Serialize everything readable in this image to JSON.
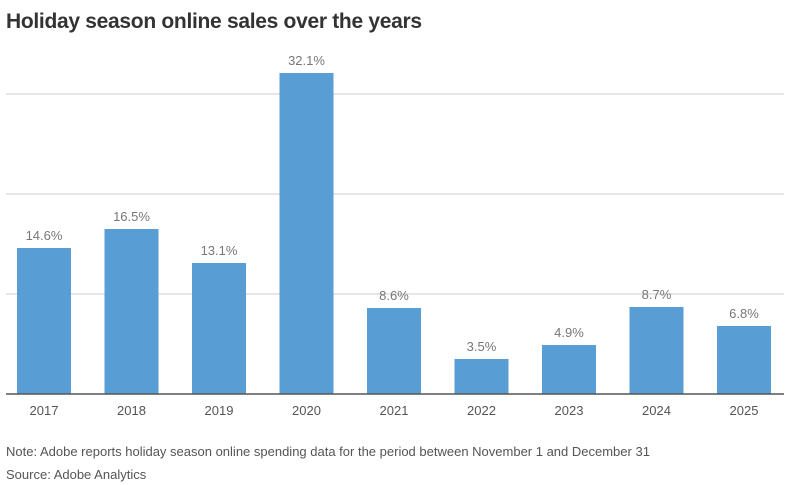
{
  "chart_data": {
    "type": "bar",
    "title": "Holiday season online sales over the years",
    "categories": [
      "2017",
      "2018",
      "2019",
      "2020",
      "2021",
      "2022",
      "2023",
      "2024",
      "2025"
    ],
    "values": [
      14.6,
      16.5,
      13.1,
      32.1,
      8.6,
      3.5,
      4.9,
      8.7,
      6.8
    ],
    "value_labels": [
      "14.6%",
      "16.5%",
      "13.1%",
      "32.1%",
      "8.6%",
      "3.5%",
      "4.9%",
      "8.7%",
      "6.8%"
    ],
    "xlabel": "",
    "ylabel": "",
    "ylim": [
      0,
      32.1
    ],
    "gridlines": [
      10,
      20,
      30
    ],
    "grid": true,
    "bar_color": "#589ED5"
  },
  "footer": {
    "note": "Note: Adobe reports holiday season online spending data for the period between November 1 and December 31",
    "source": "Source: Adobe Analytics"
  }
}
